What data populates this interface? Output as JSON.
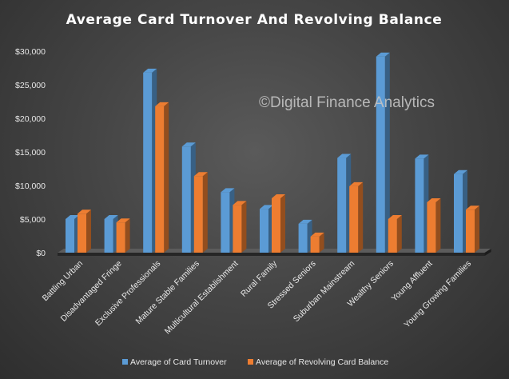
{
  "chart_data": {
    "type": "bar",
    "title": "Average Card Turnover And Revolving Balance",
    "watermark": "©Digital Finance Analytics",
    "xlabel": "",
    "ylabel": "",
    "ylim": [
      0,
      30000
    ],
    "yticks": [
      {
        "value": 0,
        "label": "$0"
      },
      {
        "value": 5000,
        "label": "$5,000"
      },
      {
        "value": 10000,
        "label": "$10,000"
      },
      {
        "value": 15000,
        "label": "$15,000"
      },
      {
        "value": 20000,
        "label": "$20,000"
      },
      {
        "value": 25000,
        "label": "$25,000"
      },
      {
        "value": 30000,
        "label": "$30,000"
      }
    ],
    "categories": [
      "Battling Urban",
      "Disadvantaged Fringe",
      "Exclusive Professionals",
      "Mature Stable Families",
      "Multicultural Establishment",
      "Rural Family",
      "Stressed Seniors",
      "Suburban Mainstream",
      "Wealthy Seniors",
      "Young Affluent",
      "Young Growing Families"
    ],
    "series": [
      {
        "name": "Average of Card Turnover",
        "color": "#5b9bd5",
        "values": [
          5000,
          5000,
          26800,
          15800,
          9000,
          6500,
          4300,
          14100,
          29200,
          14000,
          11700
        ]
      },
      {
        "name": "Average of Revolving Card Balance",
        "color": "#ed7d31",
        "values": [
          5800,
          4500,
          21800,
          11400,
          7100,
          8100,
          2400,
          9900,
          5000,
          7500,
          6400
        ]
      }
    ],
    "grid": false,
    "legend_position": "bottom",
    "background": "#444444"
  }
}
